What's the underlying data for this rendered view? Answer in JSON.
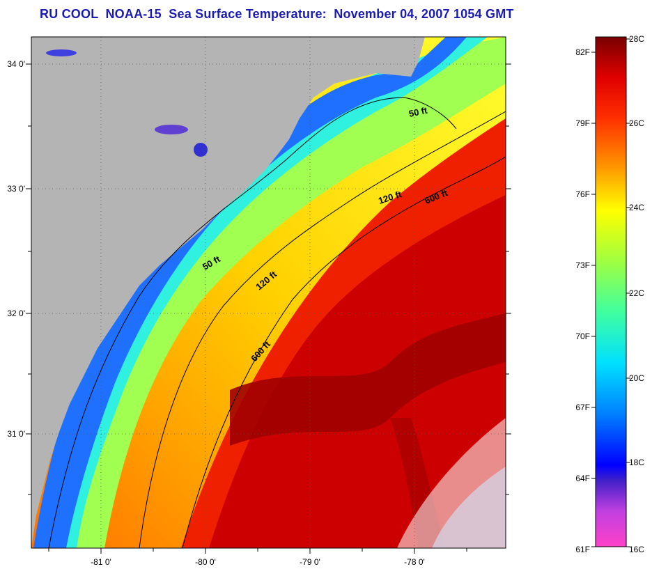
{
  "title": "RU COOL  NOAA-15  Sea Surface Temperature:  November 04, 2007 1054 GMT",
  "map": {
    "latitude_ticks": [
      "34 0'",
      "33 0'",
      "32 0'",
      "31 0'"
    ],
    "longitude_ticks": [
      "-81 0'",
      "-80 0'",
      "-79 0'",
      "-78 0'"
    ],
    "isobath_labels": [
      "50 ft",
      "120 ft",
      "600 ft",
      "50 ft",
      "120 ft",
      "600 ft"
    ],
    "colors": {
      "land": "#b4b4b4",
      "frame": "#000000"
    }
  },
  "colorbar": {
    "fahrenheit_labels": [
      "82F",
      "79F",
      "76F",
      "73F",
      "70F",
      "67F",
      "64F",
      "61F"
    ],
    "celsius_labels": [
      "28C",
      "26C",
      "24C",
      "22C",
      "20C",
      "18C",
      "16C"
    ],
    "range_celsius": [
      16,
      28
    ],
    "colors": [
      "#ff40c8",
      "#c040e0",
      "#4020c8",
      "#0000ff",
      "#0080ff",
      "#00e0ff",
      "#40ffa0",
      "#a0ff40",
      "#ffff00",
      "#ff9000",
      "#ff3000",
      "#e00000",
      "#a00000",
      "#780000"
    ]
  }
}
